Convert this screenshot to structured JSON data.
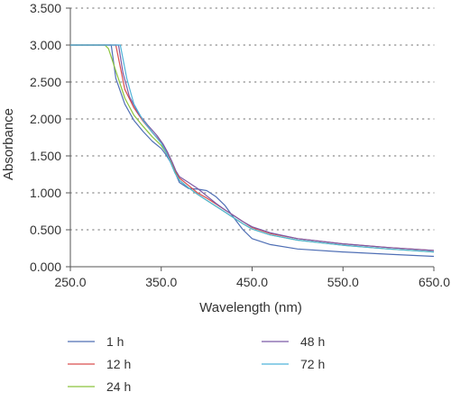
{
  "chart_data": {
    "type": "line",
    "title": "",
    "xlabel": "Wavelength (nm)",
    "ylabel": "Absorbance",
    "xlim": [
      250,
      650
    ],
    "ylim": [
      0,
      3.5
    ],
    "x_ticks": [
      "250.0",
      "350.0",
      "450.0",
      "550.0",
      "650.0"
    ],
    "y_ticks": [
      "0.000",
      "0.500",
      "1.000",
      "1.500",
      "2.000",
      "2.500",
      "3.000",
      "3.500"
    ],
    "grid": "horizontal-dotted",
    "legend_position": "bottom",
    "series": [
      {
        "name": "1 h",
        "color": "#4f6fb5",
        "x": [
          250,
          290,
          295,
          300,
          310,
          320,
          330,
          340,
          350,
          355,
          360,
          365,
          370,
          380,
          390,
          400,
          410,
          420,
          430,
          440,
          450,
          470,
          500,
          550,
          600,
          650
        ],
        "y": [
          3.0,
          3.0,
          3.0,
          2.55,
          2.2,
          1.98,
          1.83,
          1.7,
          1.6,
          1.52,
          1.42,
          1.28,
          1.14,
          1.06,
          1.05,
          1.03,
          0.95,
          0.83,
          0.66,
          0.5,
          0.38,
          0.3,
          0.24,
          0.2,
          0.17,
          0.14
        ]
      },
      {
        "name": "12 h",
        "color": "#d94f4f",
        "x": [
          250,
          295,
          300,
          305,
          310,
          320,
          330,
          340,
          350,
          355,
          360,
          365,
          370,
          380,
          390,
          400,
          410,
          420,
          430,
          440,
          450,
          470,
          500,
          550,
          600,
          650
        ],
        "y": [
          3.0,
          3.0,
          3.0,
          2.7,
          2.4,
          2.15,
          1.97,
          1.82,
          1.68,
          1.57,
          1.44,
          1.3,
          1.2,
          1.1,
          1.0,
          0.93,
          0.85,
          0.77,
          0.69,
          0.61,
          0.53,
          0.45,
          0.38,
          0.31,
          0.26,
          0.22
        ]
      },
      {
        "name": "24 h",
        "color": "#8cc43c",
        "x": [
          250,
          288,
          292,
          300,
          310,
          320,
          330,
          340,
          350,
          355,
          360,
          365,
          370,
          380,
          390,
          400,
          410,
          420,
          430,
          440,
          450,
          470,
          500,
          550,
          600,
          650
        ],
        "y": [
          3.0,
          3.0,
          2.95,
          2.65,
          2.28,
          2.05,
          1.9,
          1.76,
          1.64,
          1.55,
          1.43,
          1.28,
          1.17,
          1.07,
          0.98,
          0.9,
          0.82,
          0.74,
          0.66,
          0.58,
          0.51,
          0.43,
          0.36,
          0.29,
          0.24,
          0.2
        ]
      },
      {
        "name": "48 h",
        "color": "#7b5aa6",
        "x": [
          250,
          298,
          303,
          308,
          315,
          325,
          335,
          345,
          352,
          357,
          362,
          366,
          370,
          380,
          390,
          400,
          410,
          420,
          430,
          440,
          450,
          470,
          500,
          550,
          600,
          650
        ],
        "y": [
          3.0,
          3.0,
          3.0,
          2.62,
          2.3,
          2.07,
          1.92,
          1.78,
          1.66,
          1.55,
          1.42,
          1.3,
          1.22,
          1.14,
          1.06,
          0.96,
          0.86,
          0.77,
          0.69,
          0.61,
          0.54,
          0.46,
          0.38,
          0.31,
          0.26,
          0.22
        ]
      },
      {
        "name": "72 h",
        "color": "#4fb3d9",
        "x": [
          250,
          300,
          305,
          312,
          320,
          330,
          340,
          350,
          355,
          360,
          365,
          370,
          380,
          390,
          400,
          410,
          420,
          430,
          440,
          450,
          470,
          500,
          550,
          600,
          650
        ],
        "y": [
          3.0,
          3.0,
          3.0,
          2.55,
          2.2,
          1.98,
          1.82,
          1.67,
          1.56,
          1.42,
          1.27,
          1.17,
          1.07,
          0.98,
          0.9,
          0.82,
          0.74,
          0.66,
          0.58,
          0.51,
          0.43,
          0.36,
          0.29,
          0.24,
          0.2
        ]
      }
    ]
  }
}
